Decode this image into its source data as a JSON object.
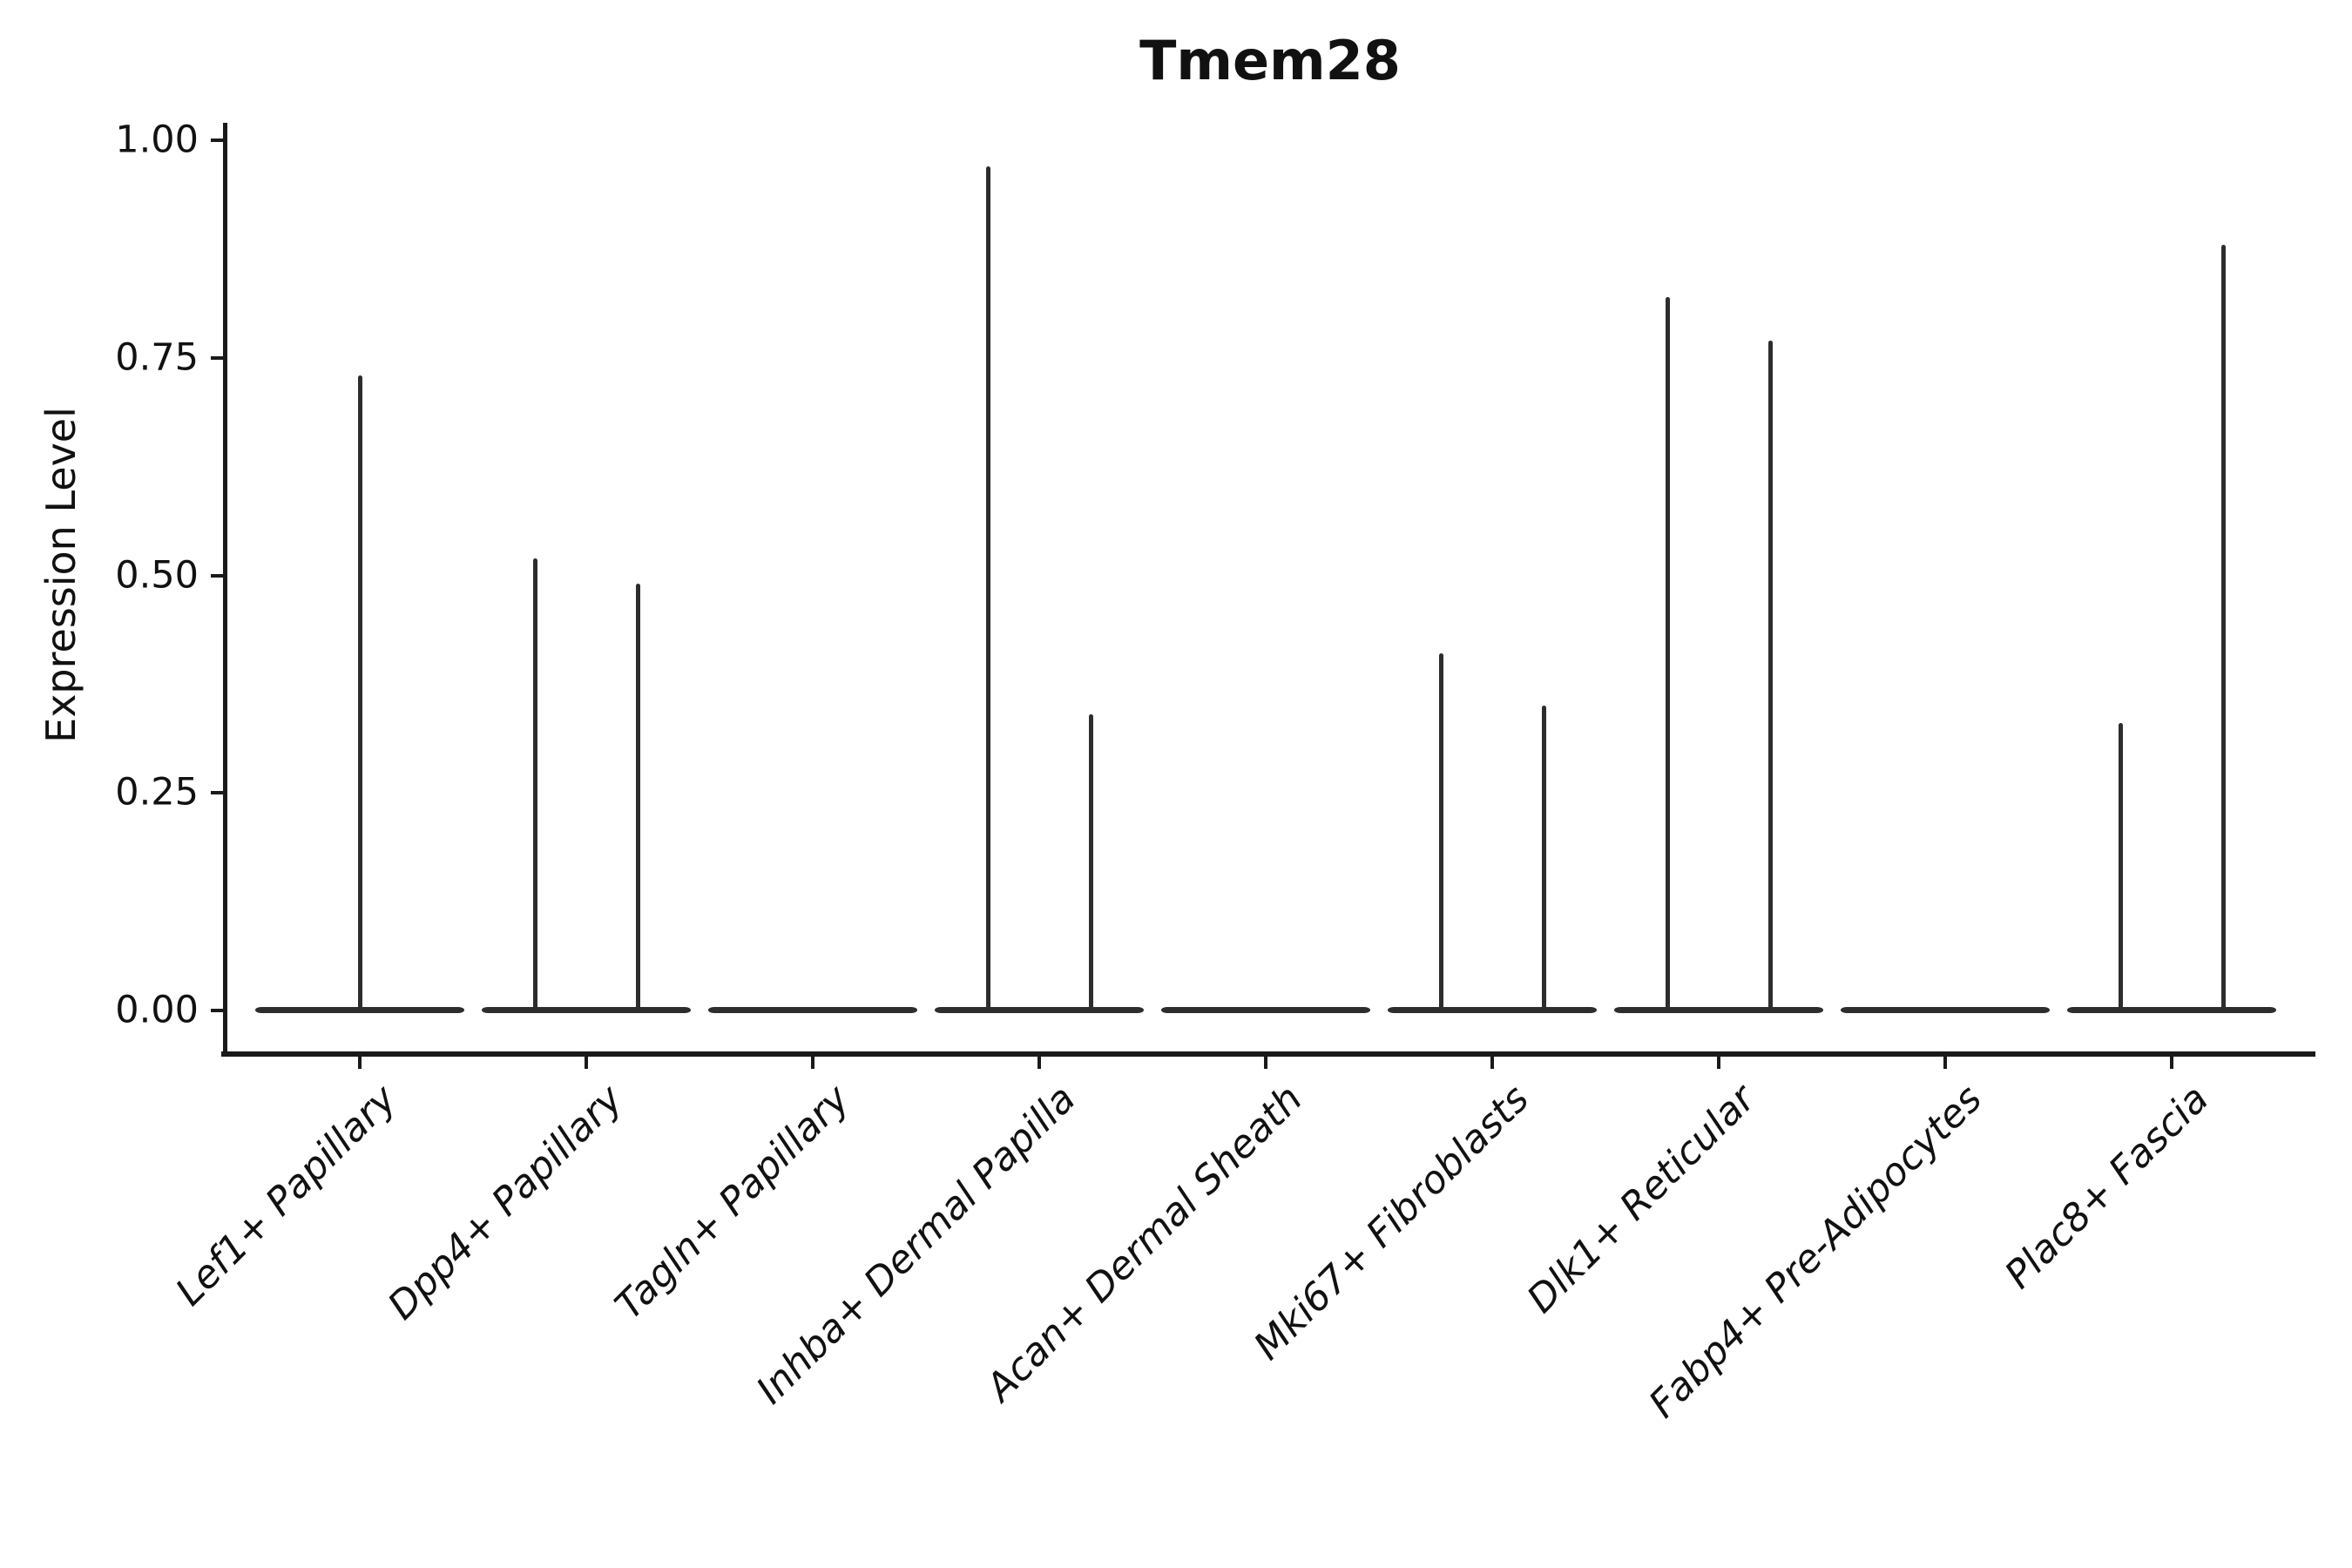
{
  "title": "Tmem28",
  "y_axis": {
    "label": "Expression Level",
    "tick_labels": [
      "0.00",
      "0.25",
      "0.50",
      "0.75",
      "1.00"
    ]
  },
  "colors": {
    "ink": "#1a1a1a",
    "violin": "#2d2d2d",
    "background": "#ffffff"
  },
  "chart_data": {
    "type": "violin",
    "title": "Tmem28",
    "xlabel": "",
    "ylabel": "Expression Level",
    "ylim": [
      0,
      1.0
    ],
    "yticks": [
      0.0,
      0.25,
      0.5,
      0.75,
      1.0
    ],
    "grid": false,
    "legend": "none",
    "categories": [
      "Lef1+ Papillary",
      "Dpp4+ Papillary",
      "Tagln+ Papillary",
      "Inhba+ Dermal Papilla",
      "Acan+ Dermal Sheath",
      "Mki67+ Fibroblasts",
      "Dlk1+ Reticular",
      "Fabp4+ Pre-Adipocytes",
      "Plac8+ Fascia"
    ],
    "series": [
      {
        "name": "Lef1+ Papillary",
        "baseline_value": 0,
        "spike_values": [
          0.73
        ]
      },
      {
        "name": "Dpp4+ Papillary",
        "baseline_value": 0,
        "spike_values": [
          0.52,
          0.49
        ]
      },
      {
        "name": "Tagln+ Papillary",
        "baseline_value": 0,
        "spike_values": []
      },
      {
        "name": "Inhba+ Dermal Papilla",
        "baseline_value": 0,
        "spike_values": [
          0.97,
          0.34
        ]
      },
      {
        "name": "Acan+ Dermal Sheath",
        "baseline_value": 0,
        "spike_values": []
      },
      {
        "name": "Mki67+ Fibroblasts",
        "baseline_value": 0,
        "spike_values": [
          0.41,
          0.35
        ]
      },
      {
        "name": "Dlk1+ Reticular",
        "baseline_value": 0,
        "spike_values": [
          0.82,
          0.77
        ]
      },
      {
        "name": "Fabp4+ Pre-Adipocytes",
        "baseline_value": 0,
        "spike_values": []
      },
      {
        "name": "Plac8+ Fascia",
        "baseline_value": 0,
        "spike_values": [
          0.33,
          0.88
        ]
      }
    ],
    "description": "Violin plot of Tmem28 expression per fibroblast cluster: flat near-zero violins with thin density spikes reaching the listed expression levels."
  }
}
